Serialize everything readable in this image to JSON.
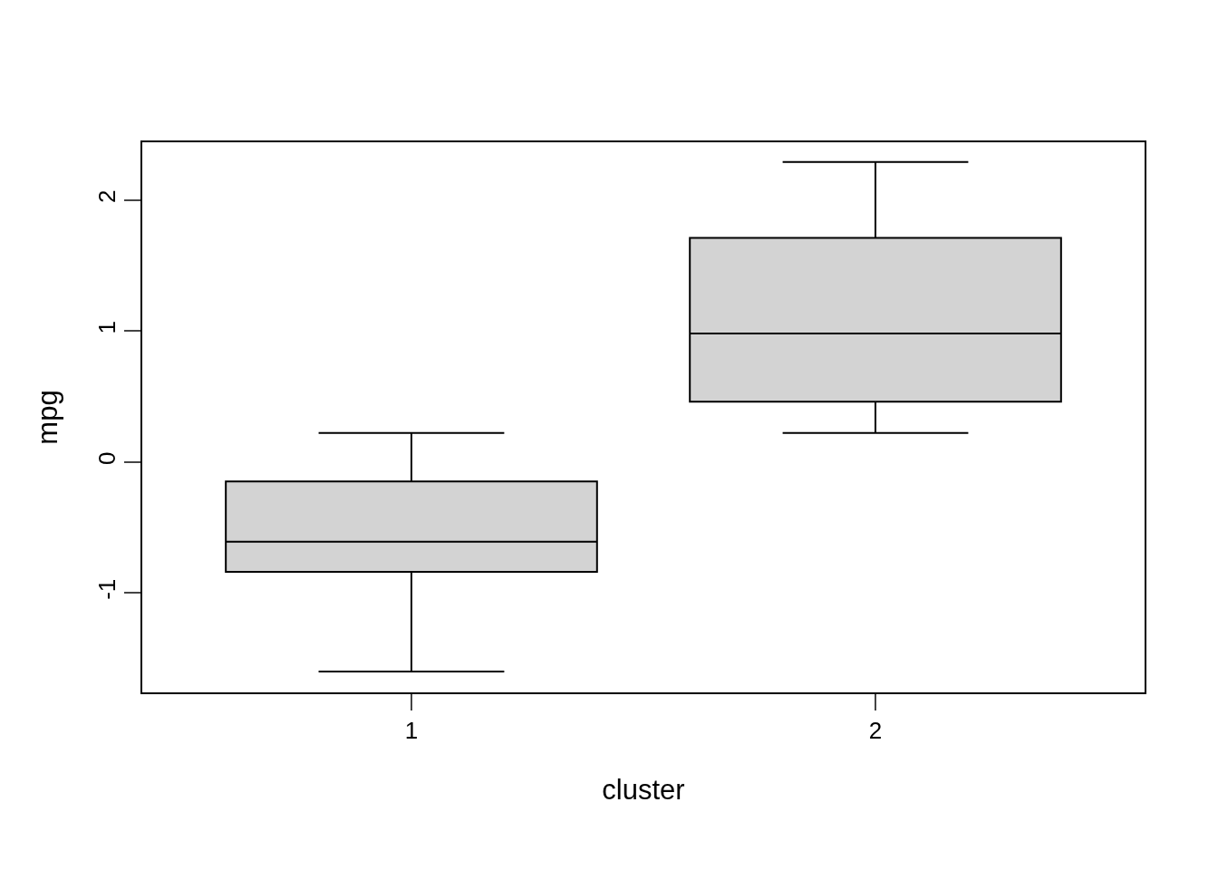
{
  "chart_data": {
    "type": "box",
    "xlabel": "cluster",
    "ylabel": "mpg",
    "categories": [
      "1",
      "2"
    ],
    "boxes": [
      {
        "low": -1.6,
        "q1": -0.84,
        "median": -0.61,
        "q3": -0.15,
        "high": 0.22
      },
      {
        "low": 0.22,
        "q1": 0.46,
        "median": 0.98,
        "q3": 1.71,
        "high": 2.29
      }
    ],
    "color": "#d3d3d3",
    "ylim": [
      -1.76,
      2.44
    ],
    "yticks": [
      -1,
      0,
      1,
      2
    ],
    "legend": false
  }
}
